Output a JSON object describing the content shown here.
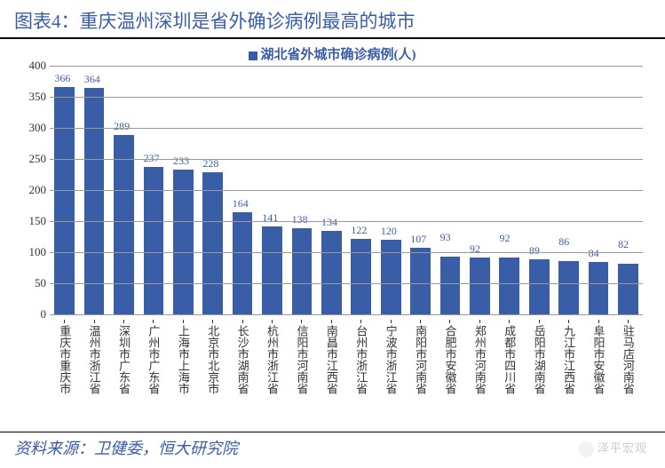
{
  "title": "图表4：重庆温州深圳是省外确诊病例最高的城市",
  "legend_label": "湖北省外城市确诊病例(人)",
  "source": "资料来源：卫健委，恒大研究院",
  "watermark": "泽平宏观",
  "chart": {
    "type": "bar",
    "bar_color": "#3a5da8",
    "title_color": "#3a5da8",
    "background_color": "#ffffff",
    "grid_color": "#999999",
    "text_color": "#333333",
    "ylim": [
      0,
      400
    ],
    "ytick_step": 50,
    "title_fontsize": 21,
    "label_fontsize": 13,
    "value_fontsize": 12,
    "bar_width": 0.68,
    "data": [
      {
        "city": "重庆市",
        "province": "重庆市",
        "value": 366
      },
      {
        "city": "温州市",
        "province": "浙江省",
        "value": 364
      },
      {
        "city": "深圳市",
        "province": "广东省",
        "value": 289
      },
      {
        "city": "广州市",
        "province": "广东省",
        "value": 237
      },
      {
        "city": "上海市",
        "province": "上海市",
        "value": 233
      },
      {
        "city": "北京市",
        "province": "北京市",
        "value": 228
      },
      {
        "city": "长沙市",
        "province": "湖南省",
        "value": 164
      },
      {
        "city": "杭州市",
        "province": "浙江省",
        "value": 141
      },
      {
        "city": "信阳市",
        "province": "河南省",
        "value": 138
      },
      {
        "city": "南昌市",
        "province": "江西省",
        "value": 134
      },
      {
        "city": "台州市",
        "province": "浙江省",
        "value": 122
      },
      {
        "city": "宁波市",
        "province": "浙江省",
        "value": 120
      },
      {
        "city": "南阳市",
        "province": "河南省",
        "value": 107
      },
      {
        "city": "合肥市",
        "province": "安徽省",
        "value": 93
      },
      {
        "city": "郑州市",
        "province": "河南省",
        "value": 92
      },
      {
        "city": "成都市",
        "province": "四川省",
        "value": 92
      },
      {
        "city": "岳阳市",
        "province": "湖南省",
        "value": 89
      },
      {
        "city": "九江市",
        "province": "江西省",
        "value": 86
      },
      {
        "city": "阜阳市",
        "province": "安徽省",
        "value": 84
      },
      {
        "city": "驻马店",
        "province": "河南省",
        "value": 82
      }
    ]
  }
}
